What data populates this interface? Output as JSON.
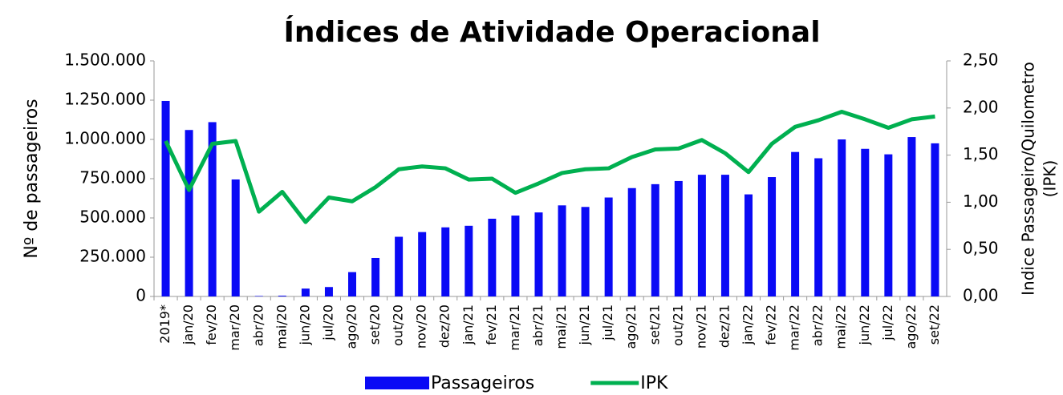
{
  "chart_data": {
    "type": "bar_line",
    "title": "Índices de Atividade Operacional",
    "y_label": "Nº de passageiros",
    "y2_label": [
      "Indice Passageiro/Quilometro",
      "(IPK)"
    ],
    "categories": [
      "2019*",
      "jan/20",
      "fev/20",
      "mar/20",
      "abr/20",
      "mai/20",
      "jun/20",
      "jul/20",
      "ago/20",
      "set/20",
      "out/20",
      "nov/20",
      "dez/20",
      "jan/21",
      "fev/21",
      "mar/21",
      "abr/21",
      "mai/21",
      "jun/21",
      "jul/21",
      "ago/21",
      "set/21",
      "out/21",
      "nov/21",
      "dez/21",
      "jan/22",
      "fev/22",
      "mar/22",
      "abr/22",
      "mai/22",
      "jun/22",
      "jul/22",
      "ago/22",
      "set/22"
    ],
    "series": [
      {
        "name": "Passageiros",
        "kind": "bar",
        "color": "#0a0af5",
        "values": [
          1245000,
          1060000,
          1110000,
          745000,
          3000,
          5000,
          50000,
          60000,
          155000,
          245000,
          380000,
          410000,
          440000,
          450000,
          495000,
          515000,
          535000,
          580000,
          570000,
          630000,
          690000,
          715000,
          735000,
          775000,
          775000,
          650000,
          760000,
          920000,
          880000,
          1000000,
          940000,
          905000,
          1015000,
          975000
        ]
      },
      {
        "name": "IPK",
        "kind": "line",
        "axis": "y2",
        "color": "#00b050",
        "values": [
          1.65,
          1.13,
          1.62,
          1.65,
          0.9,
          1.11,
          0.79,
          1.05,
          1.01,
          1.16,
          1.35,
          1.38,
          1.36,
          1.24,
          1.25,
          1.1,
          1.2,
          1.31,
          1.35,
          1.36,
          1.48,
          1.56,
          1.57,
          1.66,
          1.52,
          1.32,
          1.62,
          1.8,
          1.87,
          1.96,
          1.88,
          1.79,
          1.88,
          1.91
        ]
      }
    ],
    "ylim": [
      0,
      1500000
    ],
    "yticks": [
      0,
      {
        "value": 250000,
        "label": "250.000"
      },
      {
        "value": 500000,
        "label": "500.000"
      },
      {
        "value": 750000,
        "label": "750.000"
      },
      {
        "value": 1000000,
        "label": "1.000.000"
      },
      {
        "value": 1250000,
        "label": "1.250.000"
      },
      {
        "value": 1500000,
        "label": "1.500.000"
      }
    ],
    "y2lim": [
      0,
      2.5
    ],
    "y2ticks": [
      {
        "value": 0,
        "label": "0,00"
      },
      {
        "value": 0.5,
        "label": "0,50"
      },
      {
        "value": 1,
        "label": "1,00"
      },
      {
        "value": 1.5,
        "label": "1,50"
      },
      {
        "value": 2,
        "label": "2,00"
      },
      {
        "value": 2.5,
        "label": "2,50"
      }
    ],
    "legend": "bottom"
  }
}
